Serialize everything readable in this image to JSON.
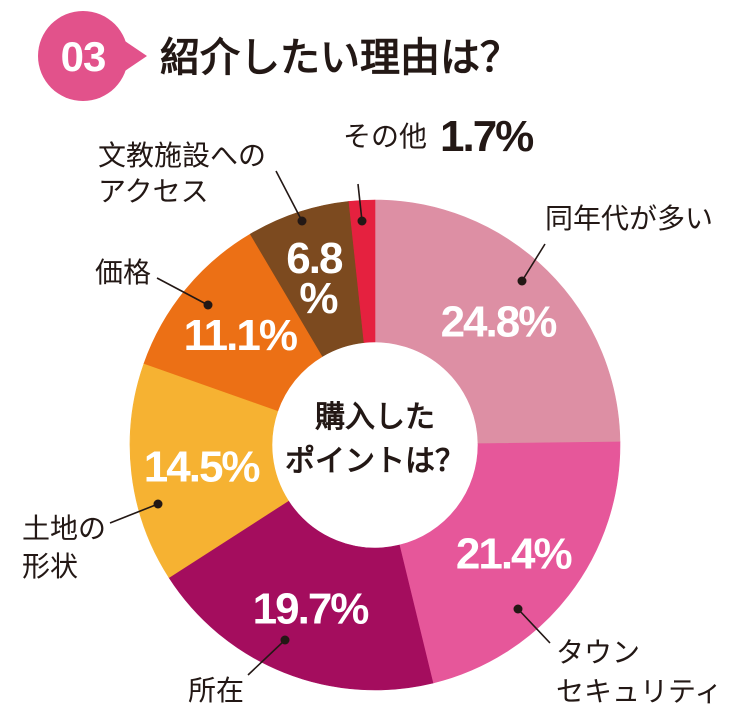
{
  "badge": {
    "number": "03",
    "color": "#E2528B"
  },
  "chart_data": {
    "type": "pie",
    "donut": true,
    "title": "紹介したい理由は？",
    "center_label": [
      "購入した",
      "ポイントは？"
    ],
    "slices": [
      {
        "label": [
          "同年代が多い"
        ],
        "value": 24.8,
        "color": "#DD8FA4"
      },
      {
        "label": [
          "タウン",
          "セキュリティ"
        ],
        "value": 21.4,
        "color": "#E6579A"
      },
      {
        "label": [
          "所在"
        ],
        "value": 19.7,
        "color": "#A40D5E"
      },
      {
        "label": [
          "土地の",
          "形状"
        ],
        "value": 14.5,
        "color": "#F6B232"
      },
      {
        "label": [
          "価格"
        ],
        "value": 11.1,
        "color": "#EC7015"
      },
      {
        "label": [
          "文教施設への",
          "アクセス"
        ],
        "value": 6.8,
        "color": "#7C4A1F"
      },
      {
        "label": [
          "その他"
        ],
        "value": 1.7,
        "color": "#E5213F"
      }
    ]
  }
}
